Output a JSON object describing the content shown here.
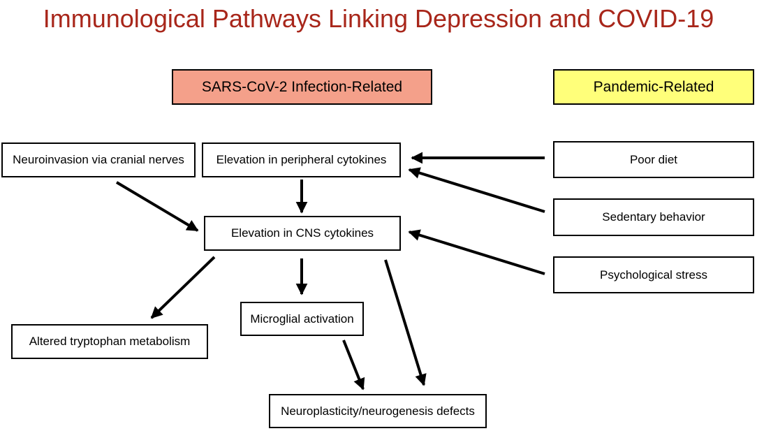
{
  "title": "Immunological Pathways Linking Depression and COVID-19",
  "headers": {
    "infection": "SARS-CoV-2 Infection-Related",
    "pandemic": "Pandemic-Related"
  },
  "nodes": {
    "neuroinvasion": "Neuroinvasion via cranial nerves",
    "peripheral_cytokines": "Elevation in peripheral cytokines",
    "cns_cytokines": "Elevation in CNS cytokines",
    "microglial": "Microglial activation",
    "tryptophan": "Altered tryptophan metabolism",
    "neuroplasticity": "Neuroplasticity/neurogenesis defects",
    "poor_diet": "Poor diet",
    "sedentary": "Sedentary behavior",
    "stress": "Psychological stress"
  },
  "colors": {
    "title": "#a8261a",
    "infection_header": "#f4a08a",
    "pandemic_header": "#ffff7a"
  },
  "edges": [
    {
      "from": "poor_diet",
      "to": "peripheral_cytokines"
    },
    {
      "from": "sedentary",
      "to": "peripheral_cytokines"
    },
    {
      "from": "stress",
      "to": "cns_cytokines"
    },
    {
      "from": "peripheral_cytokines",
      "to": "cns_cytokines"
    },
    {
      "from": "neuroinvasion",
      "to": "cns_cytokines"
    },
    {
      "from": "cns_cytokines",
      "to": "tryptophan"
    },
    {
      "from": "cns_cytokines",
      "to": "microglial"
    },
    {
      "from": "cns_cytokines",
      "to": "neuroplasticity"
    },
    {
      "from": "microglial",
      "to": "neuroplasticity"
    }
  ]
}
